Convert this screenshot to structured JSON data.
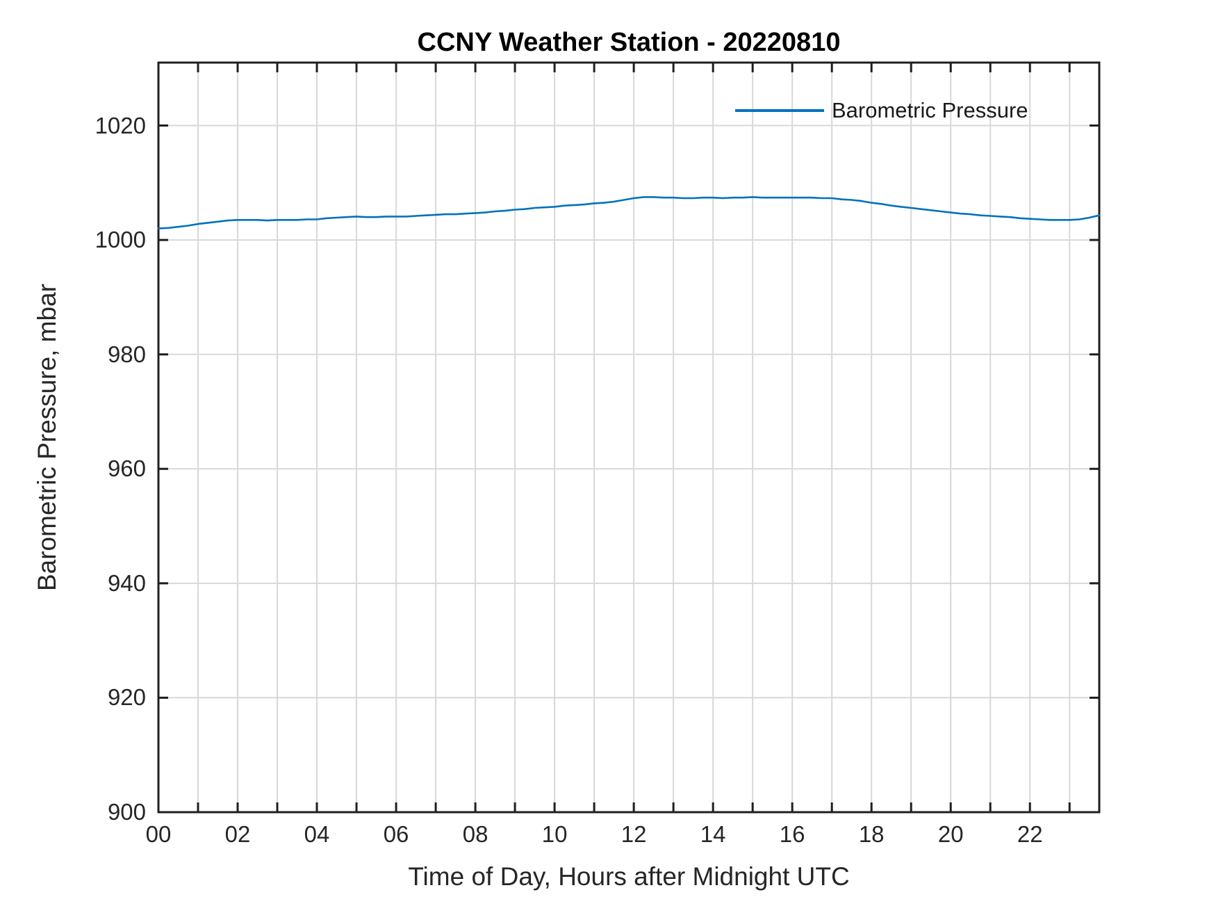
{
  "colors": {
    "line": "#0072bd",
    "axis": "#1f1f1f",
    "grid": "#d8d8d8",
    "title": "#000000",
    "tick_text": "#262626",
    "background": "#ffffff"
  },
  "chart_data": {
    "type": "line",
    "title": "CCNY Weather Station - 20220810",
    "xlabel": "Time of Day, Hours after Midnight UTC",
    "ylabel": "Barometric Pressure, mbar",
    "xlim": [
      0,
      23.75
    ],
    "ylim": [
      900,
      1031
    ],
    "grid": true,
    "xtick_values": [
      0,
      1,
      2,
      3,
      4,
      5,
      6,
      7,
      8,
      9,
      10,
      11,
      12,
      13,
      14,
      15,
      16,
      17,
      18,
      19,
      20,
      21,
      22,
      23
    ],
    "xtick_labels": [
      "00",
      "",
      "02",
      "",
      "04",
      "",
      "06",
      "",
      "08",
      "",
      "10",
      "",
      "12",
      "",
      "14",
      "",
      "16",
      "",
      "18",
      "",
      "20",
      "",
      "22",
      ""
    ],
    "ytick_values": [
      900,
      920,
      940,
      960,
      980,
      1000,
      1020
    ],
    "ytick_labels": [
      "900",
      "920",
      "940",
      "960",
      "980",
      "1000",
      "1020"
    ],
    "legend": {
      "position": "top-right",
      "box": false,
      "entries": [
        {
          "label": "Barometric Pressure",
          "color": "#0072bd"
        }
      ]
    },
    "series": [
      {
        "name": "Barometric Pressure",
        "color": "#0072bd",
        "x": [
          0,
          0.25,
          0.5,
          0.75,
          1,
          1.25,
          1.5,
          1.75,
          2,
          2.25,
          2.5,
          2.75,
          3,
          3.25,
          3.5,
          3.75,
          4,
          4.25,
          4.5,
          4.75,
          5,
          5.25,
          5.5,
          5.75,
          6,
          6.25,
          6.5,
          6.75,
          7,
          7.25,
          7.5,
          7.75,
          8,
          8.25,
          8.5,
          8.75,
          9,
          9.25,
          9.5,
          9.75,
          10,
          10.25,
          10.5,
          10.75,
          11,
          11.25,
          11.5,
          11.75,
          12,
          12.25,
          12.5,
          12.75,
          13,
          13.25,
          13.5,
          13.75,
          14,
          14.25,
          14.5,
          14.75,
          15,
          15.25,
          15.5,
          15.75,
          16,
          16.25,
          16.5,
          16.75,
          17,
          17.25,
          17.5,
          17.75,
          18,
          18.25,
          18.5,
          18.75,
          19,
          19.25,
          19.5,
          19.75,
          20,
          20.25,
          20.5,
          20.75,
          21,
          21.25,
          21.5,
          21.75,
          22,
          22.25,
          22.5,
          22.75,
          23,
          23.25,
          23.5,
          23.75
        ],
        "y": [
          1002.0,
          1002.1,
          1002.3,
          1002.5,
          1002.8,
          1003.0,
          1003.2,
          1003.4,
          1003.5,
          1003.5,
          1003.5,
          1003.4,
          1003.5,
          1003.5,
          1003.5,
          1003.6,
          1003.6,
          1003.8,
          1003.9,
          1004.0,
          1004.1,
          1004.0,
          1004.0,
          1004.1,
          1004.1,
          1004.1,
          1004.2,
          1004.3,
          1004.4,
          1004.5,
          1004.5,
          1004.6,
          1004.7,
          1004.8,
          1005.0,
          1005.1,
          1005.3,
          1005.4,
          1005.6,
          1005.7,
          1005.8,
          1006.0,
          1006.1,
          1006.2,
          1006.4,
          1006.5,
          1006.7,
          1007.0,
          1007.3,
          1007.5,
          1007.5,
          1007.4,
          1007.4,
          1007.3,
          1007.3,
          1007.4,
          1007.4,
          1007.3,
          1007.4,
          1007.4,
          1007.5,
          1007.4,
          1007.4,
          1007.4,
          1007.4,
          1007.4,
          1007.4,
          1007.3,
          1007.3,
          1007.1,
          1007.0,
          1006.8,
          1006.5,
          1006.3,
          1006.0,
          1005.8,
          1005.6,
          1005.4,
          1005.2,
          1005.0,
          1004.8,
          1004.6,
          1004.5,
          1004.3,
          1004.2,
          1004.1,
          1004.0,
          1003.8,
          1003.7,
          1003.6,
          1003.5,
          1003.5,
          1003.5,
          1003.6,
          1003.9,
          1004.3
        ]
      }
    ]
  }
}
